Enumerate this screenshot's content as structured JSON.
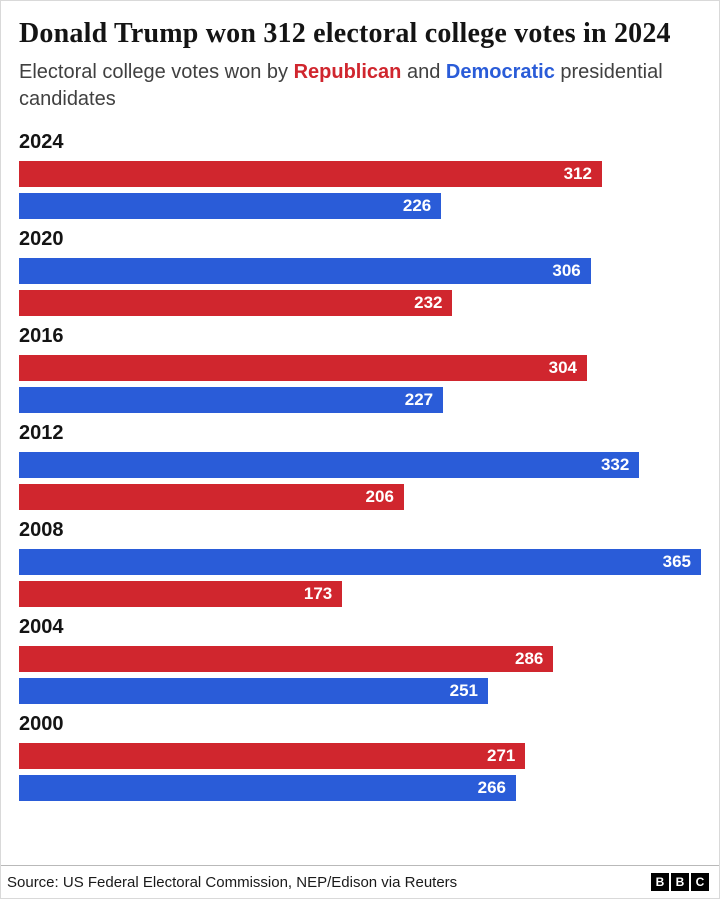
{
  "header": {
    "title": "Donald Trump won 312 electoral college votes in 2024",
    "subtitle_prefix": "Electoral college votes won by ",
    "republican_label": "Republican",
    "subtitle_and": " and ",
    "democratic_label": "Democratic",
    "subtitle_suffix": " presidential candidates"
  },
  "chart_data": {
    "type": "bar",
    "orientation": "horizontal",
    "title": "Donald Trump won 312 electoral college votes in 2024",
    "xlim": [
      0,
      365
    ],
    "max_value": 365,
    "grid": false,
    "legend": "inline-subtitle",
    "colors": {
      "republican": "#d0262e",
      "democratic": "#2a5cd8"
    },
    "groups": [
      {
        "year": "2024",
        "bars": [
          {
            "party": "republican",
            "value": 312
          },
          {
            "party": "democratic",
            "value": 226
          }
        ]
      },
      {
        "year": "2020",
        "bars": [
          {
            "party": "democratic",
            "value": 306
          },
          {
            "party": "republican",
            "value": 232
          }
        ]
      },
      {
        "year": "2016",
        "bars": [
          {
            "party": "republican",
            "value": 304
          },
          {
            "party": "democratic",
            "value": 227
          }
        ]
      },
      {
        "year": "2012",
        "bars": [
          {
            "party": "democratic",
            "value": 332
          },
          {
            "party": "republican",
            "value": 206
          }
        ]
      },
      {
        "year": "2008",
        "bars": [
          {
            "party": "democratic",
            "value": 365
          },
          {
            "party": "republican",
            "value": 173
          }
        ]
      },
      {
        "year": "2004",
        "bars": [
          {
            "party": "republican",
            "value": 286
          },
          {
            "party": "democratic",
            "value": 251
          }
        ]
      },
      {
        "year": "2000",
        "bars": [
          {
            "party": "republican",
            "value": 271
          },
          {
            "party": "democratic",
            "value": 266
          }
        ]
      }
    ]
  },
  "footer": {
    "source": "Source: US Federal Electoral Commission, NEP/Edison via Reuters",
    "logo_letters": [
      "B",
      "B",
      "C"
    ]
  }
}
